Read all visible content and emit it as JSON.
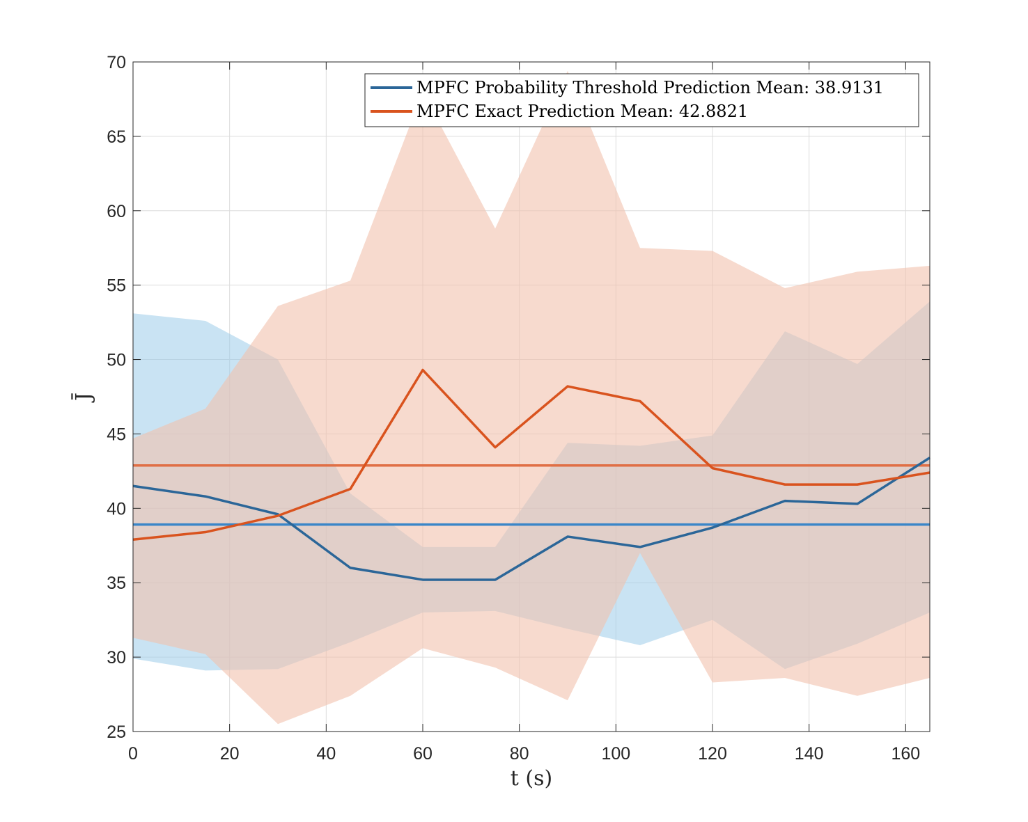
{
  "chart_data": {
    "type": "line",
    "title": "",
    "xlabel": "t (s)",
    "ylabel": "J̄",
    "xlim": [
      0,
      165
    ],
    "ylim": [
      25,
      70
    ],
    "xticks": [
      0,
      20,
      40,
      60,
      80,
      100,
      120,
      140,
      160
    ],
    "yticks": [
      25,
      30,
      35,
      40,
      45,
      50,
      55,
      60,
      65,
      70
    ],
    "grid": true,
    "legend_position": "top-right",
    "x": [
      0,
      15,
      30,
      45,
      60,
      75,
      90,
      105,
      120,
      135,
      150,
      165
    ],
    "series": [
      {
        "name": "MPFC Probability Threshold Prediction Mean: 38.9131",
        "color": "#2b6698",
        "mean_line_color": "#3a86c8",
        "band_color": "#9cccea",
        "values": [
          41.5,
          40.8,
          39.6,
          36.0,
          35.2,
          35.2,
          38.1,
          37.4,
          38.7,
          40.5,
          40.3,
          43.4
        ],
        "upper": [
          53.1,
          52.6,
          50.0,
          41.0,
          37.4,
          37.4,
          44.4,
          44.2,
          44.9,
          51.9,
          49.7,
          53.9
        ],
        "lower": [
          29.9,
          29.1,
          29.2,
          31.0,
          33.0,
          33.1,
          31.9,
          30.8,
          32.5,
          29.2,
          30.9,
          33.0
        ],
        "mean": 38.9131
      },
      {
        "name": "MPFC Exact Prediction Mean: 42.8821",
        "color": "#d9531e",
        "mean_line_color": "#e06f45",
        "band_color": "#f2c2ad",
        "values": [
          37.9,
          38.4,
          39.5,
          41.3,
          49.3,
          44.1,
          48.2,
          47.2,
          42.7,
          41.6,
          41.6,
          42.4
        ],
        "upper": [
          44.7,
          46.7,
          53.6,
          55.3,
          68.0,
          58.8,
          69.4,
          57.5,
          57.3,
          54.8,
          55.9,
          56.3
        ],
        "lower": [
          31.3,
          30.2,
          25.5,
          27.4,
          30.6,
          29.3,
          27.1,
          37.0,
          28.3,
          28.6,
          27.4,
          28.6
        ],
        "mean": 42.8821
      }
    ]
  }
}
